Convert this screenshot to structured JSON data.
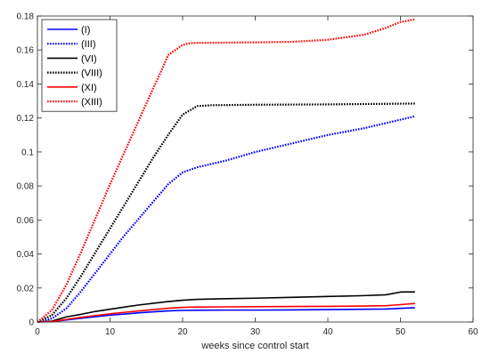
{
  "chart_data": {
    "type": "line",
    "xlabel": "weeks since control start",
    "ylabel": "",
    "xlim": [
      0,
      60
    ],
    "ylim": [
      0,
      0.18
    ],
    "xticks": [
      0,
      10,
      20,
      30,
      40,
      50,
      60
    ],
    "yticks": [
      0,
      0.02,
      0.04,
      0.06,
      0.08,
      0.1,
      0.12,
      0.14,
      0.16,
      0.18
    ],
    "xtick_labels": [
      "0",
      "10",
      "20",
      "30",
      "40",
      "50",
      "60"
    ],
    "ytick_labels": [
      "0",
      "0.02",
      "0.04",
      "0.06",
      "0.08",
      "0.1",
      "0.12",
      "0.14",
      "0.16",
      "0.18"
    ],
    "grid": false,
    "legend_position": "top-left",
    "series": [
      {
        "name": "(I)",
        "color": "#0000ff",
        "style": "solid",
        "points": [
          [
            0,
            0
          ],
          [
            2,
            0.0002
          ],
          [
            4,
            0.0012
          ],
          [
            6,
            0.0022
          ],
          [
            8,
            0.0031
          ],
          [
            10,
            0.004
          ],
          [
            12,
            0.0047
          ],
          [
            14,
            0.0054
          ],
          [
            16,
            0.006
          ],
          [
            18,
            0.0065
          ],
          [
            20,
            0.0068
          ],
          [
            22,
            0.0069
          ],
          [
            26,
            0.007
          ],
          [
            30,
            0.007
          ],
          [
            35,
            0.0071
          ],
          [
            40,
            0.0073
          ],
          [
            45,
            0.0075
          ],
          [
            48,
            0.0076
          ],
          [
            50,
            0.008
          ],
          [
            52,
            0.0084
          ]
        ]
      },
      {
        "name": "(III)",
        "color": "#0000ff",
        "style": "dotted",
        "points": [
          [
            0,
            0
          ],
          [
            2,
            0.002
          ],
          [
            4,
            0.008
          ],
          [
            6,
            0.018
          ],
          [
            8,
            0.029
          ],
          [
            10,
            0.04
          ],
          [
            12,
            0.051
          ],
          [
            14,
            0.061
          ],
          [
            16,
            0.071
          ],
          [
            18,
            0.081
          ],
          [
            20,
            0.088
          ],
          [
            22,
            0.091
          ],
          [
            24,
            0.093
          ],
          [
            26,
            0.095
          ],
          [
            30,
            0.1
          ],
          [
            35,
            0.105
          ],
          [
            40,
            0.11
          ],
          [
            45,
            0.114
          ],
          [
            50,
            0.119
          ],
          [
            52,
            0.121
          ]
        ]
      },
      {
        "name": "(VI)",
        "color": "#000000",
        "style": "solid",
        "points": [
          [
            0,
            0
          ],
          [
            2,
            0.0005
          ],
          [
            4,
            0.003
          ],
          [
            6,
            0.0045
          ],
          [
            8,
            0.0062
          ],
          [
            10,
            0.0075
          ],
          [
            12,
            0.0088
          ],
          [
            14,
            0.01
          ],
          [
            16,
            0.011
          ],
          [
            18,
            0.012
          ],
          [
            20,
            0.0128
          ],
          [
            22,
            0.0133
          ],
          [
            26,
            0.0137
          ],
          [
            30,
            0.014
          ],
          [
            35,
            0.0145
          ],
          [
            40,
            0.015
          ],
          [
            45,
            0.0155
          ],
          [
            48,
            0.016
          ],
          [
            50,
            0.0176
          ],
          [
            52,
            0.0177
          ]
        ]
      },
      {
        "name": "(VIII)",
        "color": "#000000",
        "style": "dotted",
        "points": [
          [
            0,
            0
          ],
          [
            2,
            0.004
          ],
          [
            4,
            0.014
          ],
          [
            6,
            0.027
          ],
          [
            8,
            0.041
          ],
          [
            10,
            0.055
          ],
          [
            12,
            0.069
          ],
          [
            14,
            0.083
          ],
          [
            16,
            0.097
          ],
          [
            18,
            0.11
          ],
          [
            19,
            0.116
          ],
          [
            20,
            0.122
          ],
          [
            22,
            0.127
          ],
          [
            24,
            0.1275
          ],
          [
            30,
            0.1278
          ],
          [
            40,
            0.128
          ],
          [
            52,
            0.1285
          ]
        ]
      },
      {
        "name": "(XI)",
        "color": "#ff0000",
        "style": "solid",
        "points": [
          [
            0,
            0
          ],
          [
            2,
            0.0003
          ],
          [
            4,
            0.0015
          ],
          [
            6,
            0.0027
          ],
          [
            8,
            0.0038
          ],
          [
            10,
            0.0048
          ],
          [
            12,
            0.0057
          ],
          [
            14,
            0.0065
          ],
          [
            16,
            0.0073
          ],
          [
            18,
            0.0081
          ],
          [
            20,
            0.0086
          ],
          [
            22,
            0.0088
          ],
          [
            26,
            0.0089
          ],
          [
            30,
            0.009
          ],
          [
            35,
            0.0091
          ],
          [
            40,
            0.0092
          ],
          [
            45,
            0.0094
          ],
          [
            48,
            0.0096
          ],
          [
            50,
            0.0102
          ],
          [
            52,
            0.0109
          ]
        ]
      },
      {
        "name": "(XIII)",
        "color": "#ff0000",
        "style": "dotted",
        "points": [
          [
            0,
            0
          ],
          [
            2,
            0.007
          ],
          [
            4,
            0.022
          ],
          [
            6,
            0.041
          ],
          [
            8,
            0.061
          ],
          [
            10,
            0.081
          ],
          [
            12,
            0.1
          ],
          [
            14,
            0.119
          ],
          [
            16,
            0.138
          ],
          [
            17,
            0.147
          ],
          [
            18,
            0.157
          ],
          [
            19,
            0.16
          ],
          [
            20,
            0.163
          ],
          [
            21,
            0.164
          ],
          [
            22,
            0.1642
          ],
          [
            25,
            0.1643
          ],
          [
            30,
            0.1645
          ],
          [
            35,
            0.1648
          ],
          [
            40,
            0.166
          ],
          [
            45,
            0.169
          ],
          [
            48,
            0.173
          ],
          [
            50,
            0.1765
          ],
          [
            52,
            0.178
          ]
        ]
      }
    ]
  }
}
